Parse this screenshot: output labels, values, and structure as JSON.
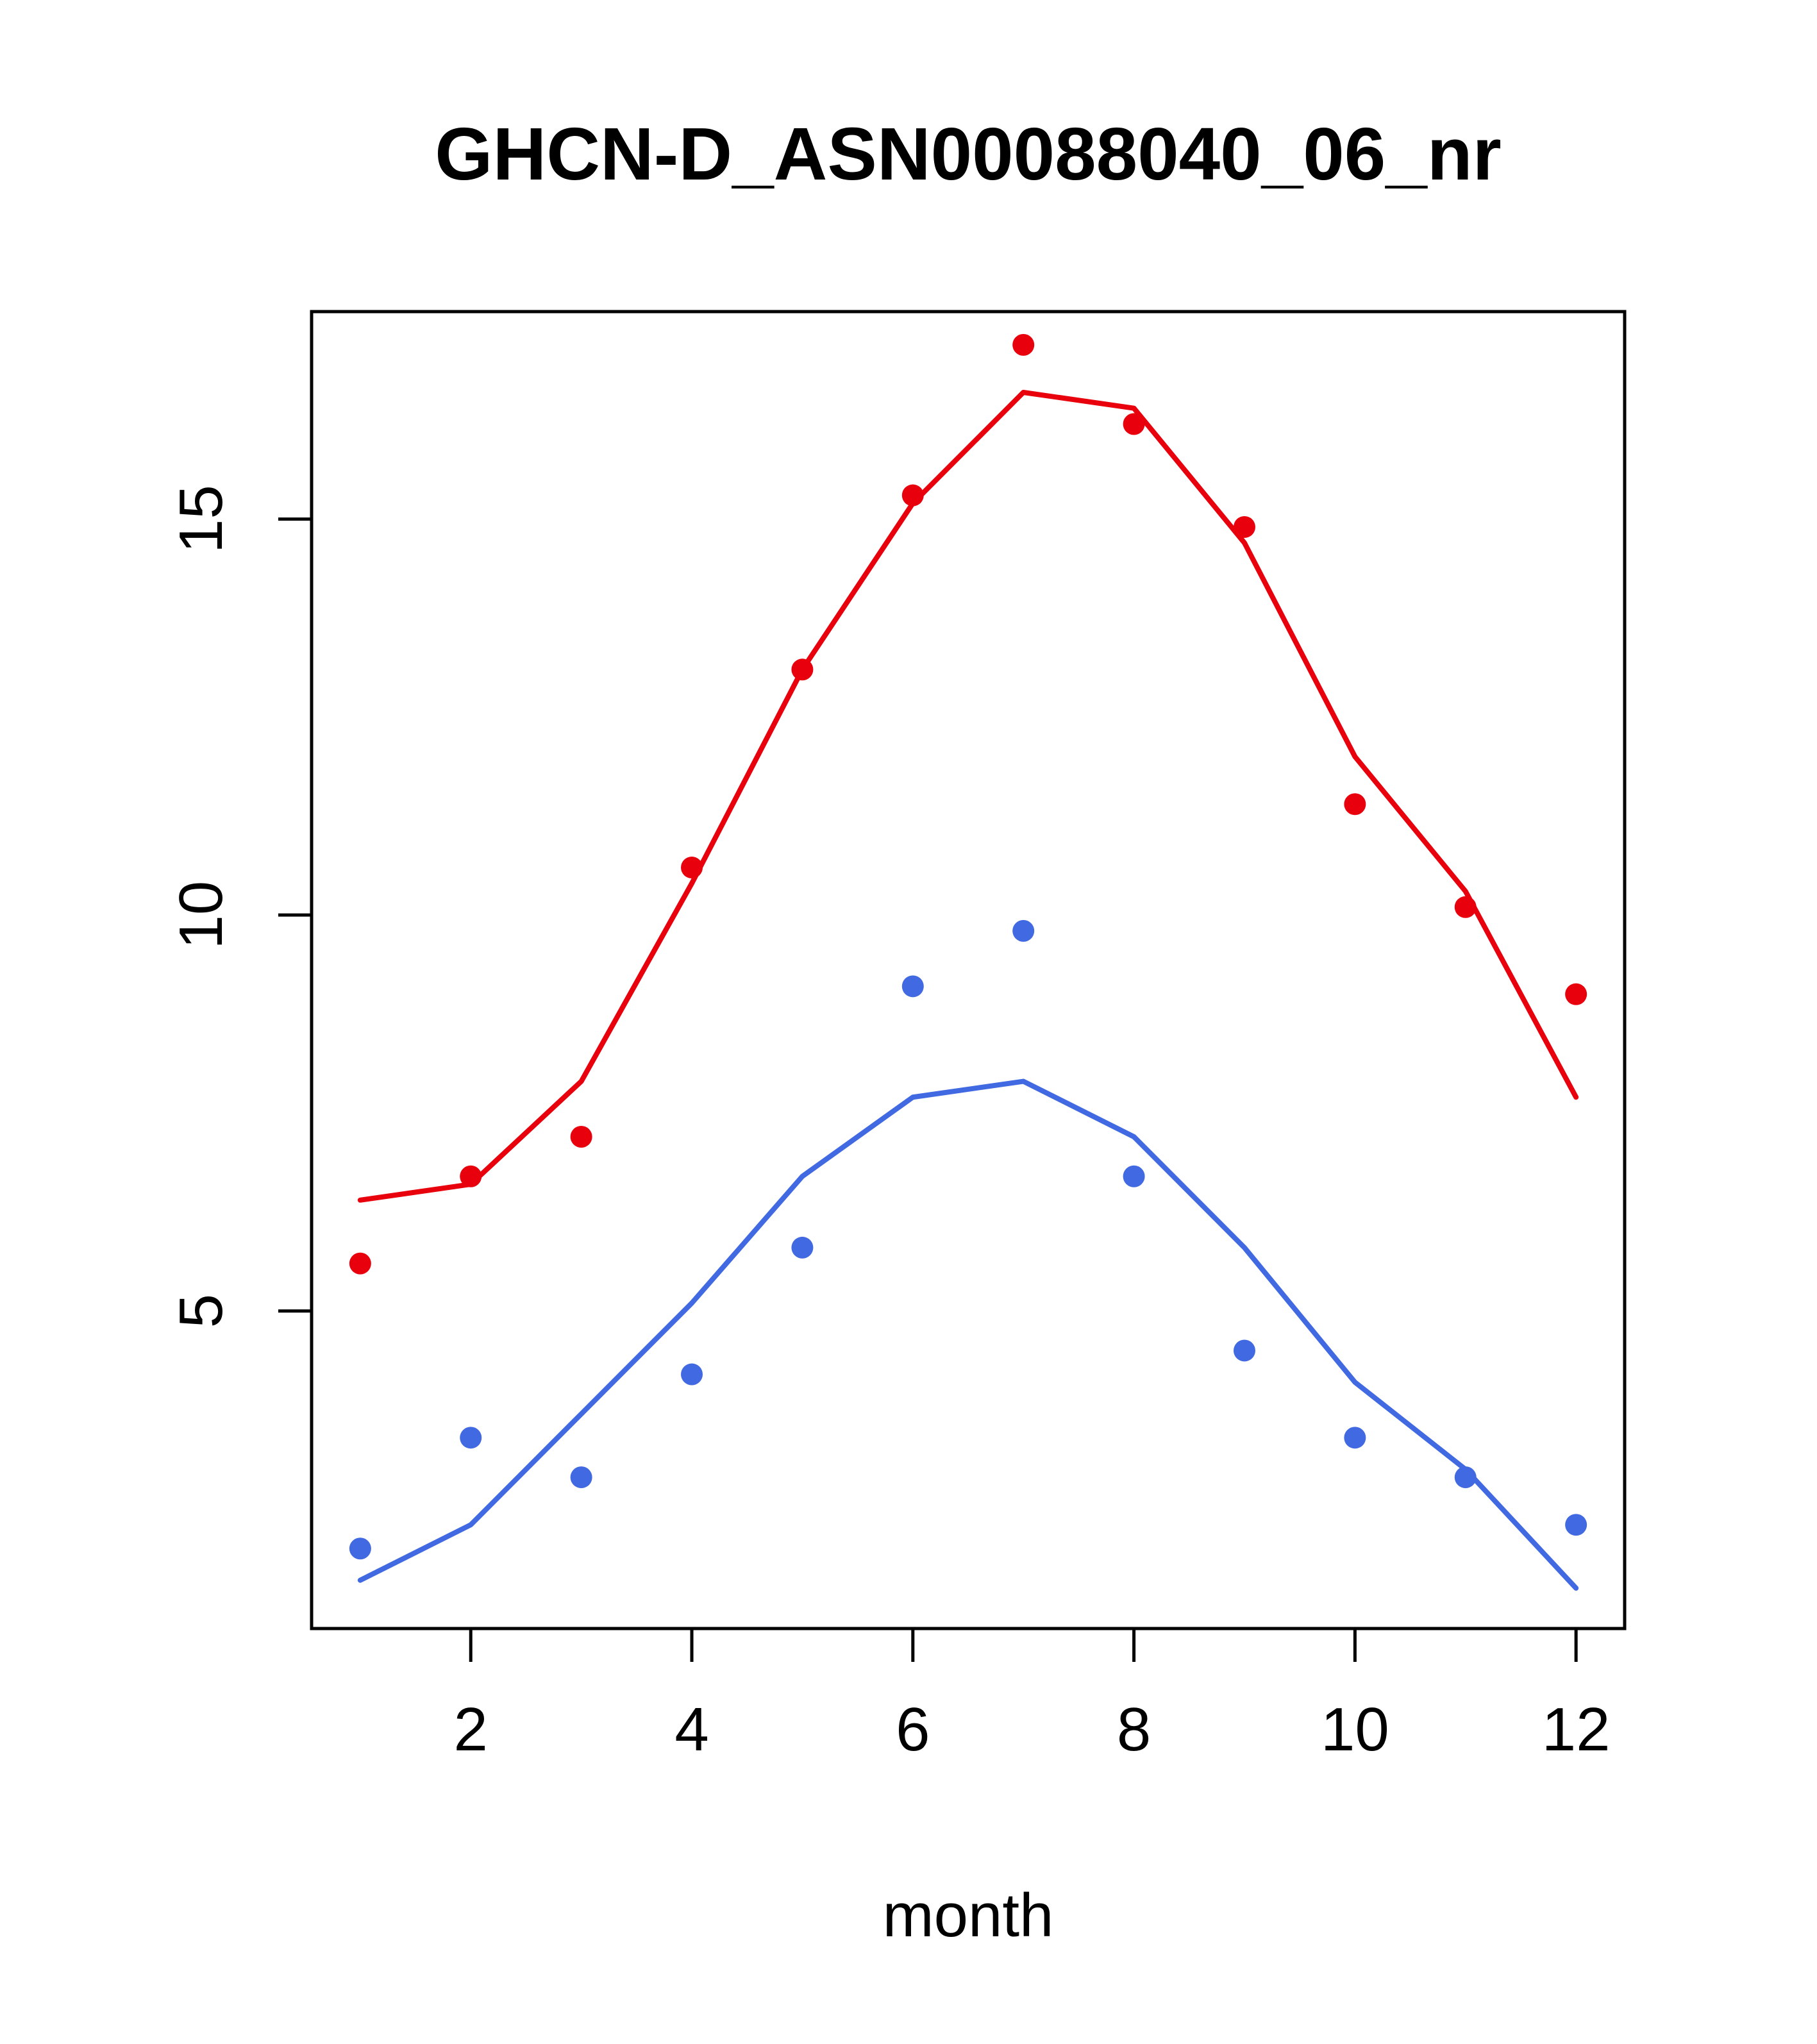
{
  "title": "GHCN-D_ASN00088040_06_nr",
  "chart_data": {
    "type": "scatter",
    "title": "GHCN-D_ASN00088040_06_nr",
    "xlabel": "month",
    "ylabel": "",
    "x": [
      1,
      2,
      3,
      4,
      5,
      6,
      7,
      8,
      9,
      10,
      11,
      12
    ],
    "xlim": [
      0.56,
      12.44
    ],
    "ylim": [
      0.99,
      17.62
    ],
    "x_ticks": [
      2,
      4,
      6,
      8,
      10,
      12
    ],
    "y_ticks": [
      5,
      10,
      15
    ],
    "grid": "off",
    "legend": "none",
    "colors": {
      "red": "#e8000d",
      "blue": "#4169e1"
    },
    "series": [
      {
        "name": "red-line-fit",
        "kind": "line",
        "color": "#e8000d",
        "values": [
          6.4,
          6.6,
          7.9,
          10.4,
          13.1,
          15.2,
          16.6,
          16.4,
          14.7,
          12.0,
          10.3,
          7.7
        ]
      },
      {
        "name": "blue-line-fit",
        "kind": "line",
        "color": "#4169e1",
        "values": [
          1.6,
          2.3,
          3.7,
          5.1,
          6.7,
          7.7,
          7.9,
          7.2,
          5.8,
          4.1,
          3.0,
          1.5
        ]
      },
      {
        "name": "red-points",
        "kind": "points",
        "color": "#e8000d",
        "values": [
          5.6,
          6.7,
          7.2,
          10.6,
          13.1,
          15.3,
          17.2,
          16.2,
          14.9,
          11.4,
          10.1,
          9.0
        ]
      },
      {
        "name": "blue-points",
        "kind": "points",
        "color": "#4169e1",
        "values": [
          2.0,
          3.4,
          2.9,
          4.2,
          5.8,
          9.1,
          9.8,
          6.7,
          4.5,
          3.4,
          2.9,
          2.3
        ]
      }
    ]
  }
}
